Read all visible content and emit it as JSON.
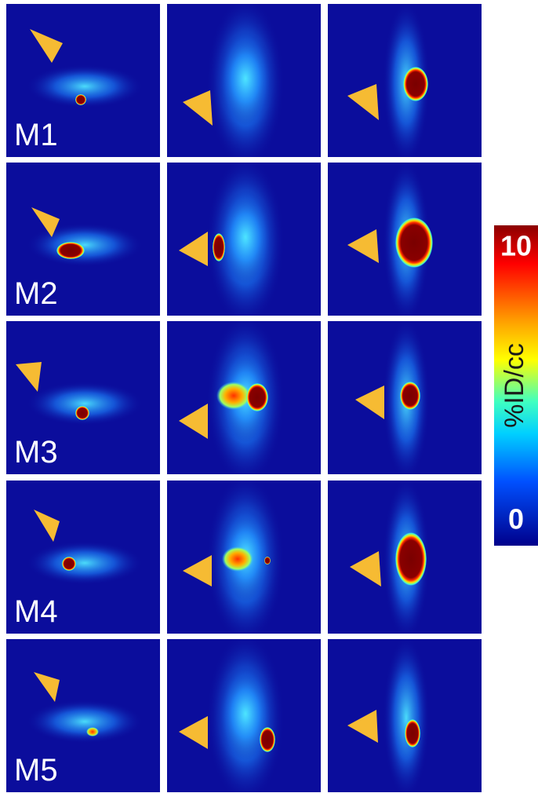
{
  "rows": [
    {
      "label": "M1"
    },
    {
      "label": "M2"
    },
    {
      "label": "M3"
    },
    {
      "label": "M4"
    },
    {
      "label": "M5"
    }
  ],
  "colorbar": {
    "title": "%ID/cc",
    "max": "10",
    "min": "0"
  }
}
